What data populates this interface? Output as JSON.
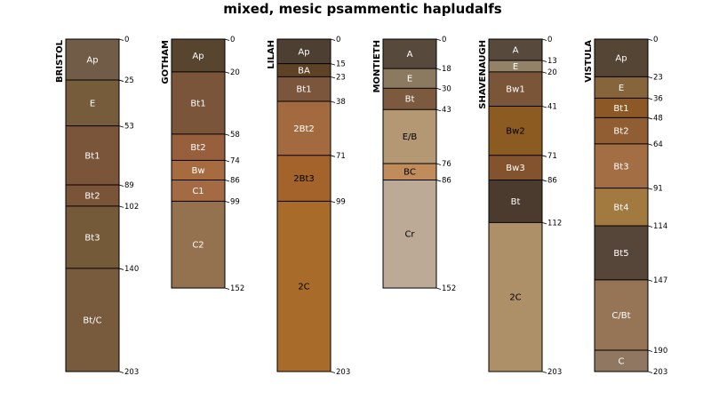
{
  "title": "mixed, mesic psammentic hapludalfs",
  "chart_data": {
    "type": "soil-profile-sketch",
    "depth_unit": "cm",
    "max_depth": 203,
    "profiles": [
      {
        "name": "BRISTOL",
        "horizons": [
          {
            "name": "Ap",
            "top": 0,
            "bottom": 25,
            "color": "#715d47",
            "text_color": "#ffffff"
          },
          {
            "name": "E",
            "top": 25,
            "bottom": 53,
            "color": "#775c3b",
            "text_color": "#ffffff"
          },
          {
            "name": "Bt1",
            "top": 53,
            "bottom": 89,
            "color": "#7a553a",
            "text_color": "#ffffff"
          },
          {
            "name": "Bt2",
            "top": 89,
            "bottom": 102,
            "color": "#7a5438",
            "text_color": "#ffffff"
          },
          {
            "name": "Bt3",
            "top": 102,
            "bottom": 140,
            "color": "#755a3a",
            "text_color": "#ffffff"
          },
          {
            "name": "Bt/C",
            "top": 140,
            "bottom": 203,
            "color": "#775b3c",
            "text_color": "#ffffff"
          }
        ]
      },
      {
        "name": "GOTHAM",
        "horizons": [
          {
            "name": "Ap",
            "top": 0,
            "bottom": 20,
            "color": "#57452f",
            "text_color": "#ffffff"
          },
          {
            "name": "Bt1",
            "top": 20,
            "bottom": 58,
            "color": "#7b553a",
            "text_color": "#ffffff"
          },
          {
            "name": "Bt2",
            "top": 58,
            "bottom": 74,
            "color": "#985f3d",
            "text_color": "#ffffff"
          },
          {
            "name": "Bw",
            "top": 74,
            "bottom": 86,
            "color": "#a66b3f",
            "text_color": "#ffffff"
          },
          {
            "name": "C1",
            "top": 86,
            "bottom": 99,
            "color": "#a46a43",
            "text_color": "#ffffff"
          },
          {
            "name": "C2",
            "top": 99,
            "bottom": 152,
            "color": "#94724f",
            "text_color": "#ffffff"
          }
        ]
      },
      {
        "name": "LILAH",
        "horizons": [
          {
            "name": "Ap",
            "top": 0,
            "bottom": 15,
            "color": "#4d3f31",
            "text_color": "#ffffff"
          },
          {
            "name": "BA",
            "top": 15,
            "bottom": 23,
            "color": "#5e4226",
            "text_color": "#ffffff"
          },
          {
            "name": "Bt1",
            "top": 23,
            "bottom": 38,
            "color": "#7b563c",
            "text_color": "#ffffff"
          },
          {
            "name": "2Bt2",
            "top": 38,
            "bottom": 71,
            "color": "#a46a3f",
            "text_color": "#ffffff"
          },
          {
            "name": "2Bt3",
            "top": 71,
            "bottom": 99,
            "color": "#a4632a",
            "text_color": "#000000"
          },
          {
            "name": "2C",
            "top": 99,
            "bottom": 203,
            "color": "#a86b2a",
            "text_color": "#000000"
          }
        ]
      },
      {
        "name": "MONTIETH",
        "horizons": [
          {
            "name": "A",
            "top": 0,
            "bottom": 18,
            "color": "#574a3d",
            "text_color": "#ffffff"
          },
          {
            "name": "E",
            "top": 18,
            "bottom": 30,
            "color": "#8c7a60",
            "text_color": "#ffffff"
          },
          {
            "name": "Bt",
            "top": 30,
            "bottom": 43,
            "color": "#7c5a3f",
            "text_color": "#ffffff"
          },
          {
            "name": "E/B",
            "top": 43,
            "bottom": 76,
            "color": "#b49874",
            "text_color": "#000000"
          },
          {
            "name": "BC",
            "top": 76,
            "bottom": 86,
            "color": "#c08c5b",
            "text_color": "#000000"
          },
          {
            "name": "Cr",
            "top": 86,
            "bottom": 152,
            "color": "#bcaa96",
            "text_color": "#000000"
          }
        ]
      },
      {
        "name": "SHAVENAUGH",
        "horizons": [
          {
            "name": "A",
            "top": 0,
            "bottom": 13,
            "color": "#574a3d",
            "text_color": "#ffffff"
          },
          {
            "name": "E",
            "top": 13,
            "bottom": 20,
            "color": "#948268",
            "text_color": "#ffffff"
          },
          {
            "name": "Bw1",
            "top": 20,
            "bottom": 41,
            "color": "#7a5538",
            "text_color": "#ffffff"
          },
          {
            "name": "Bw2",
            "top": 41,
            "bottom": 71,
            "color": "#8c5b22",
            "text_color": "#000000"
          },
          {
            "name": "Bw3",
            "top": 71,
            "bottom": 86,
            "color": "#83532e",
            "text_color": "#ffffff"
          },
          {
            "name": "Bt",
            "top": 86,
            "bottom": 112,
            "color": "#4a3b2e",
            "text_color": "#ffffff"
          },
          {
            "name": "2C",
            "top": 112,
            "bottom": 203,
            "color": "#ae9068",
            "text_color": "#000000"
          }
        ]
      },
      {
        "name": "VISTULA",
        "horizons": [
          {
            "name": "Ap",
            "top": 0,
            "bottom": 23,
            "color": "#544534",
            "text_color": "#ffffff"
          },
          {
            "name": "E",
            "top": 23,
            "bottom": 36,
            "color": "#86643c",
            "text_color": "#ffffff"
          },
          {
            "name": "Bt1",
            "top": 36,
            "bottom": 48,
            "color": "#8c5826",
            "text_color": "#ffffff"
          },
          {
            "name": "Bt2",
            "top": 48,
            "bottom": 64,
            "color": "#915d33",
            "text_color": "#ffffff"
          },
          {
            "name": "Bt3",
            "top": 64,
            "bottom": 91,
            "color": "#a46e45",
            "text_color": "#ffffff"
          },
          {
            "name": "Bt4",
            "top": 91,
            "bottom": 114,
            "color": "#a27a40",
            "text_color": "#ffffff"
          },
          {
            "name": "Bt5",
            "top": 114,
            "bottom": 147,
            "color": "#56463a",
            "text_color": "#ffffff"
          },
          {
            "name": "C/Bt",
            "top": 147,
            "bottom": 190,
            "color": "#957556",
            "text_color": "#ffffff"
          },
          {
            "name": "C",
            "top": 190,
            "bottom": 203,
            "color": "#8f7761",
            "text_color": "#ffffff"
          }
        ]
      }
    ]
  }
}
